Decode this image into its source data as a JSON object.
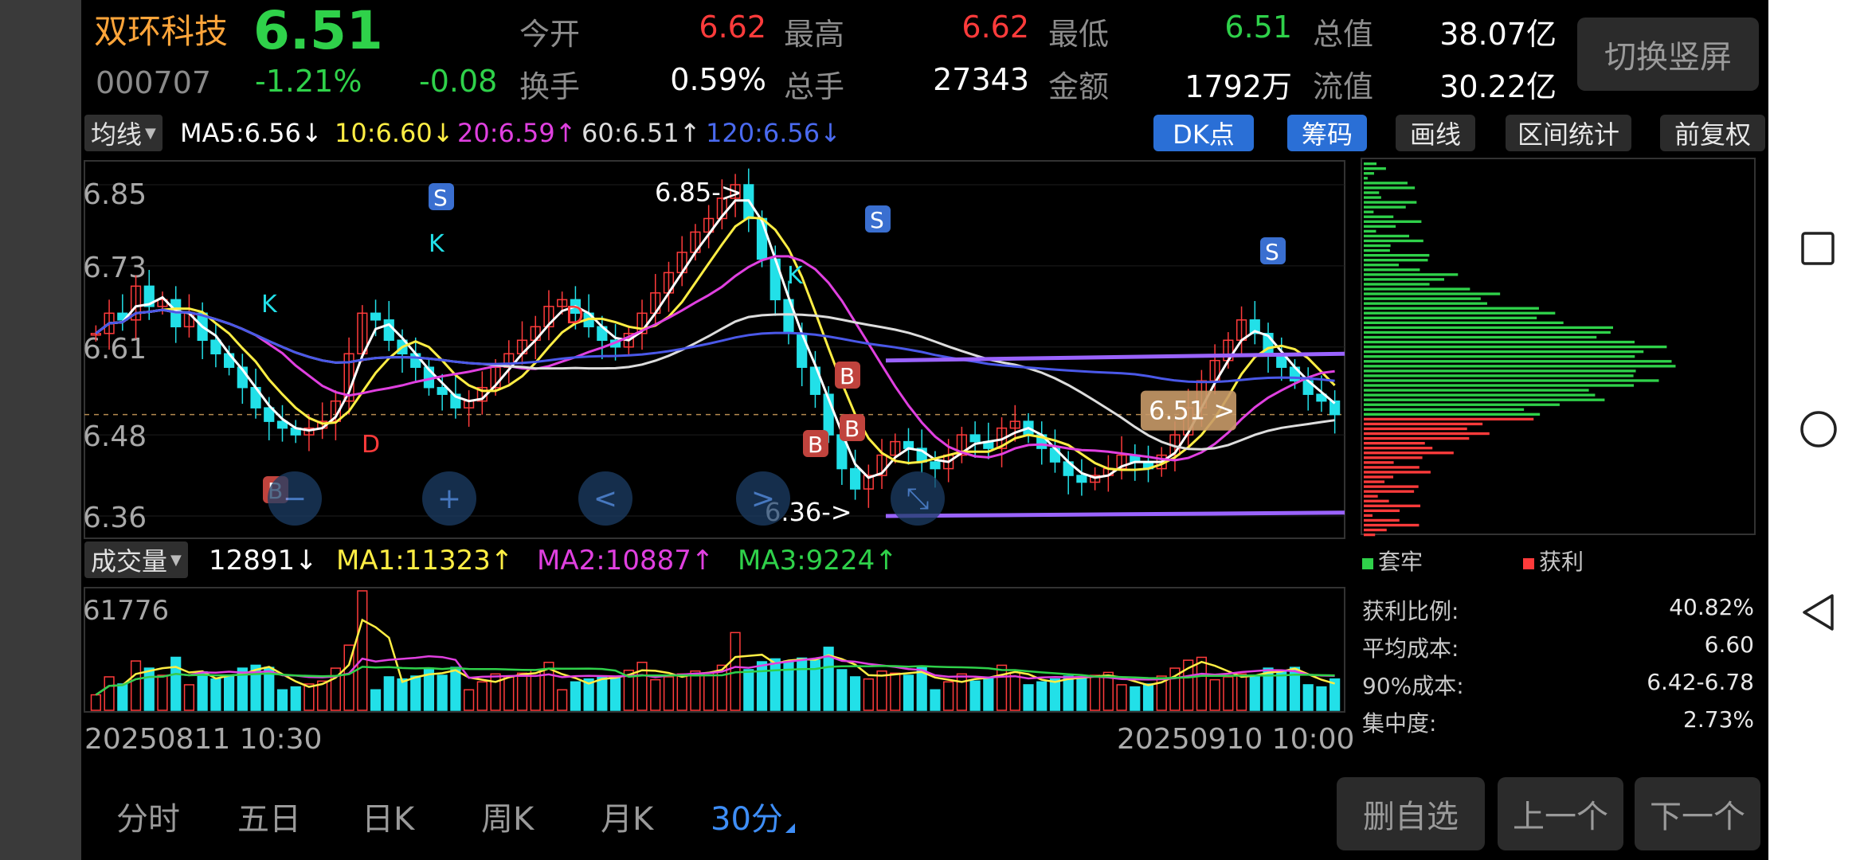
{
  "stock": {
    "name": "双环科技",
    "code": "000707",
    "price": "6.51",
    "change_pct": "-1.21%",
    "change": "-0.08"
  },
  "quote": {
    "open_label": "今开",
    "open": "6.62",
    "high_label": "最高",
    "high": "6.62",
    "low_label": "最低",
    "low": "6.51",
    "total_mv_label": "总值",
    "total_mv": "38.07亿",
    "turnover_label": "换手",
    "turnover": "0.59%",
    "volume_label": "总手",
    "volume": "27343",
    "amount_label": "金额",
    "amount": "1792万",
    "float_mv_label": "流值",
    "float_mv": "30.22亿"
  },
  "switch_button": "切换竖屏",
  "ma_bar": {
    "dropdown": "均线",
    "ma5": "MA5:6.56↓",
    "ma10": "10:6.60↓",
    "ma20": "20:6.59↑",
    "ma60": "60:6.51↑",
    "ma120": "120:6.56↓"
  },
  "tools": {
    "dk": "DK点",
    "chips": "筹码",
    "draw": "画线",
    "range": "区间统计",
    "adjust": "前复权"
  },
  "price_axis": [
    "6.85",
    "6.73",
    "6.61",
    "6.48",
    "6.36"
  ],
  "annotations": {
    "high": "6.85->",
    "low": "6.36->",
    "current": "6.51 >",
    "signals": [
      "S",
      "S",
      "S",
      "K",
      "K",
      "K",
      "B",
      "B",
      "B",
      "B",
      "D",
      "D"
    ]
  },
  "volume_bar": {
    "dropdown": "成交量",
    "vol": "12891↓",
    "ma1": "MA1:11323↑",
    "ma2": "MA2:10887↑",
    "ma3": "MA3:9224↑",
    "max": "61776"
  },
  "time_axis": {
    "start": "20250811 10:30",
    "end": "20250910 10:00"
  },
  "chips_legend": {
    "trapped": "套牢",
    "profit": "获利"
  },
  "chips_stats": [
    {
      "label": "获利比例:",
      "value": "40.82%"
    },
    {
      "label": "平均成本:",
      "value": "6.60"
    },
    {
      "label": "90%成本:",
      "value": "6.42-6.78"
    },
    {
      "label": "集中度:",
      "value": "2.73%"
    }
  ],
  "bottom_tabs": [
    "分时",
    "五日",
    "日K",
    "周K",
    "月K",
    "30分"
  ],
  "actions": {
    "remove": "删自选",
    "prev": "上一个",
    "next": "下一个"
  },
  "colors": {
    "up": "#ff3b3b",
    "down": "#2fd14a",
    "cyan_candle": "#22e0e8",
    "ma5": "#ffffff",
    "ma10": "#ffee44",
    "ma20": "#e040e0",
    "ma60": "#dddddd",
    "ma120": "#4a58e8",
    "channel": "#9a63ff",
    "accent_blue": "#3e8ef7"
  },
  "chart_data": {
    "type": "candlestick",
    "price_range": [
      6.36,
      6.85
    ],
    "volume_max": 61776,
    "current_price": 6.51,
    "close_series": [
      6.63,
      6.66,
      6.65,
      6.7,
      6.67,
      6.68,
      6.64,
      6.66,
      6.62,
      6.6,
      6.58,
      6.55,
      6.52,
      6.5,
      6.49,
      6.48,
      6.49,
      6.5,
      6.53,
      6.6,
      6.66,
      6.65,
      6.62,
      6.6,
      6.58,
      6.55,
      6.54,
      6.52,
      6.53,
      6.55,
      6.58,
      6.6,
      6.62,
      6.64,
      6.67,
      6.68,
      6.66,
      6.64,
      6.62,
      6.61,
      6.63,
      6.66,
      6.69,
      6.72,
      6.75,
      6.78,
      6.8,
      6.83,
      6.85,
      6.8,
      6.74,
      6.68,
      6.63,
      6.58,
      6.54,
      6.48,
      6.43,
      6.4,
      6.42,
      6.45,
      6.47,
      6.46,
      6.44,
      6.43,
      6.45,
      6.48,
      6.47,
      6.46,
      6.49,
      6.5,
      6.48,
      6.46,
      6.44,
      6.42,
      6.41,
      6.42,
      6.43,
      6.45,
      6.44,
      6.43,
      6.45,
      6.48,
      6.52,
      6.56,
      6.59,
      6.62,
      6.65,
      6.63,
      6.6,
      6.58,
      6.56,
      6.54,
      6.53,
      6.51
    ]
  }
}
